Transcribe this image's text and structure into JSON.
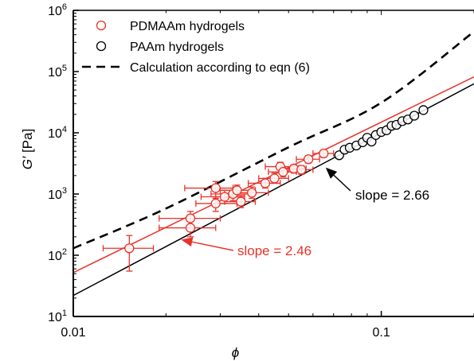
{
  "chart_data": {
    "type": "scatter",
    "title": "",
    "xlabel": "ϕ",
    "ylabel_main": "G′",
    "ylabel_unit": " [Pa]",
    "x_scale": "log",
    "y_scale": "log",
    "xlim": [
      0.01,
      0.2
    ],
    "ylim": [
      10,
      1000000
    ],
    "x_ticks": [
      {
        "value": 0.01,
        "label": "0.01"
      },
      {
        "value": 0.1,
        "label": "0.1"
      }
    ],
    "y_ticks": [
      {
        "value": 10,
        "base": "10",
        "exp": "1"
      },
      {
        "value": 100,
        "base": "10",
        "exp": "2"
      },
      {
        "value": 1000,
        "base": "10",
        "exp": "3"
      },
      {
        "value": 10000,
        "base": "10",
        "exp": "4"
      },
      {
        "value": 100000,
        "base": "10",
        "exp": "5"
      },
      {
        "value": 1000000,
        "base": "10",
        "exp": "6"
      }
    ],
    "legend_position": "top-left",
    "legend": [
      {
        "label": "PDMAAm hydrogels",
        "marker": "circle",
        "color": "#e8332a"
      },
      {
        "label": "PAAm hydrogels",
        "marker": "circle",
        "color": "#000000"
      },
      {
        "label": "Calculation according to eqn (6)",
        "marker": "dashed-line",
        "color": "#000000"
      }
    ],
    "series": [
      {
        "name": "PDMAAm hydrogels",
        "color": "#e8332a",
        "points": [
          {
            "x": 0.0152,
            "y": 130,
            "xerr": [
              0.0125,
              0.0182
            ],
            "yerr": [
              55,
              210
            ]
          },
          {
            "x": 0.024,
            "y": 280,
            "xerr": [
              0.019,
              0.029
            ],
            "yerr": [
              200,
              360
            ]
          },
          {
            "x": 0.024,
            "y": 400,
            "xerr": [
              0.019,
              0.03
            ],
            "yerr": [
              280,
              520
            ]
          },
          {
            "x": 0.029,
            "y": 700,
            "xerr": [
              0.025,
              0.034
            ],
            "yerr": [
              520,
              900
            ]
          },
          {
            "x": 0.029,
            "y": 1250,
            "xerr": [
              0.023,
              0.033
            ],
            "yerr": [
              850,
              1600
            ]
          },
          {
            "x": 0.031,
            "y": 900,
            "xerr": [
              0.026,
              0.036
            ],
            "yerr": [
              700,
              1150
            ]
          },
          {
            "x": 0.033,
            "y": 1000,
            "xerr": [
              0.028,
              0.038
            ],
            "yerr": [
              780,
              1250
            ]
          },
          {
            "x": 0.034,
            "y": 1150,
            "xerr": [
              0.03,
              0.039
            ],
            "yerr": [
              900,
              1400
            ]
          },
          {
            "x": 0.035,
            "y": 750,
            "xerr": [
              0.031,
              0.039
            ],
            "yerr": [
              600,
              950
            ]
          },
          {
            "x": 0.038,
            "y": 1050,
            "xerr": [
              0.034,
              0.043
            ],
            "yerr": [
              850,
              1300
            ]
          },
          {
            "x": 0.042,
            "y": 1500,
            "xerr": [
              0.037,
              0.047
            ],
            "yerr": [
              1250,
              1800
            ]
          },
          {
            "x": 0.045,
            "y": 1800,
            "xerr": [
              0.04,
              0.05
            ],
            "yerr": [
              1500,
              2200
            ]
          },
          {
            "x": 0.047,
            "y": 2800,
            "xerr": [
              0.042,
              0.052
            ],
            "yerr": [
              2300,
              3300
            ]
          },
          {
            "x": 0.048,
            "y": 2300,
            "xerr": [
              0.043,
              0.053
            ],
            "yerr": [
              1900,
              2700
            ]
          },
          {
            "x": 0.052,
            "y": 2600,
            "xerr": [
              0.047,
              0.057
            ],
            "yerr": [
              2200,
              3000
            ]
          },
          {
            "x": 0.055,
            "y": 2500,
            "xerr": [
              0.05,
              0.06
            ],
            "yerr": [
              2100,
              2900
            ]
          },
          {
            "x": 0.058,
            "y": 3700,
            "xerr": [
              0.053,
              0.063
            ],
            "yerr": [
              3200,
              4200
            ]
          },
          {
            "x": 0.065,
            "y": 4600,
            "xerr": [
              0.06,
              0.07
            ],
            "yerr": [
              4000,
              5200
            ]
          }
        ]
      },
      {
        "name": "PAAm hydrogels",
        "color": "#000000",
        "points": [
          {
            "x": 0.073,
            "y": 4300
          },
          {
            "x": 0.076,
            "y": 5300
          },
          {
            "x": 0.079,
            "y": 5700
          },
          {
            "x": 0.083,
            "y": 6200
          },
          {
            "x": 0.087,
            "y": 7000
          },
          {
            "x": 0.09,
            "y": 8300
          },
          {
            "x": 0.093,
            "y": 7200
          },
          {
            "x": 0.096,
            "y": 9200
          },
          {
            "x": 0.1,
            "y": 10300
          },
          {
            "x": 0.104,
            "y": 11000
          },
          {
            "x": 0.108,
            "y": 13000
          },
          {
            "x": 0.112,
            "y": 13500
          },
          {
            "x": 0.117,
            "y": 15500
          },
          {
            "x": 0.122,
            "y": 16500
          },
          {
            "x": 0.128,
            "y": 19000
          },
          {
            "x": 0.137,
            "y": 23500
          }
        ]
      }
    ],
    "fit_lines": [
      {
        "name": "PDMAAm fit",
        "color": "#e8332a",
        "style": "solid",
        "slope": 2.46,
        "x": [
          0.01,
          0.2
        ],
        "y": [
          52,
          82000
        ]
      },
      {
        "name": "PAAm fit",
        "color": "#000000",
        "style": "solid",
        "slope": 2.66,
        "x": [
          0.01,
          0.2
        ],
        "y": [
          22,
          63000
        ]
      },
      {
        "name": "Calculation according to eqn (6)",
        "color": "#000000",
        "style": "dashed",
        "x": [
          0.01,
          0.02,
          0.05,
          0.1,
          0.2
        ],
        "y": [
          130,
          580,
          5800,
          31000,
          450000
        ]
      }
    ],
    "annotations": [
      {
        "text": "slope = 2.66",
        "color": "#000000",
        "arrow_to": {
          "x": 0.066,
          "y": 2700
        }
      },
      {
        "text": "slope = 2.46",
        "color": "#e8332a",
        "arrow_to": {
          "x": 0.0224,
          "y": 180
        }
      }
    ]
  }
}
